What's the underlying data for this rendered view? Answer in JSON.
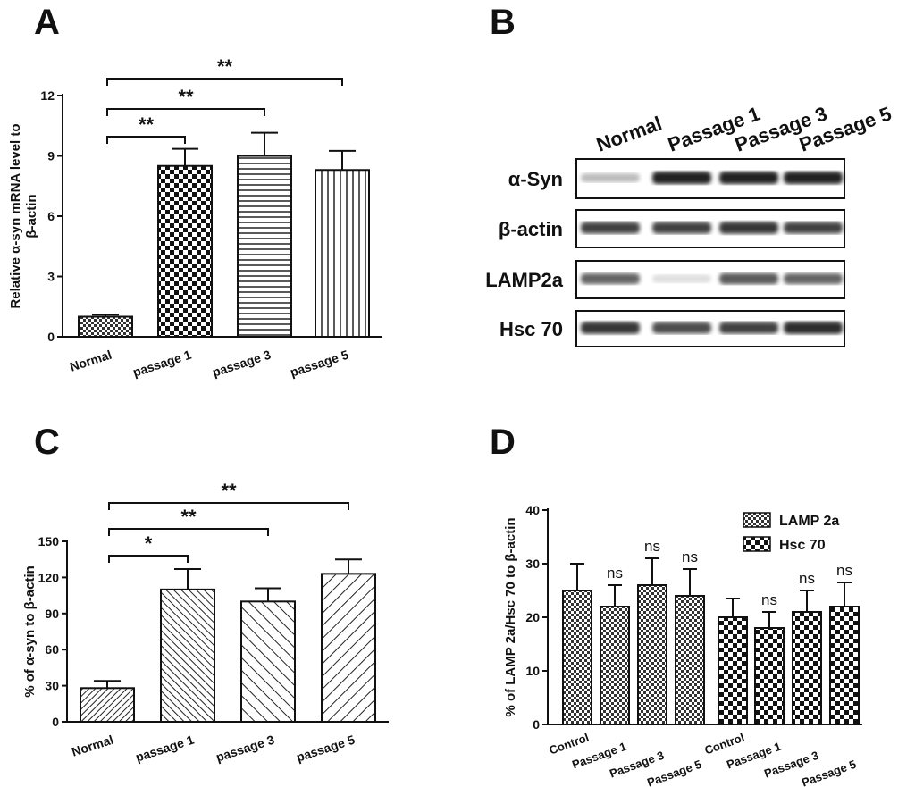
{
  "chart_data": [
    {
      "type": "bar",
      "panel": "A",
      "ylabel": [
        "Relative α-syn mRNA level to",
        "β-actin"
      ],
      "categories": [
        "Normal",
        "passage 1",
        "passage 3",
        "passage 5"
      ],
      "values": [
        1,
        8.5,
        9,
        8.3
      ],
      "errors": [
        0.1,
        0.85,
        1.15,
        0.95
      ],
      "patterns": [
        "checker-fine",
        "checker",
        "hlines",
        "vlines"
      ],
      "ylim": [
        0,
        12
      ],
      "yticks": [
        0,
        3,
        6,
        9,
        12
      ],
      "annotations": [
        {
          "text": "**",
          "from": 0,
          "to": 3
        },
        {
          "text": "**",
          "from": 0,
          "to": 2
        },
        {
          "text": "**",
          "from": 0,
          "to": 1
        }
      ]
    },
    {
      "type": "bar",
      "panel": "C",
      "ylabel": [
        "% of α-syn  to  β-actin"
      ],
      "categories": [
        "Normal",
        "passage 1",
        "passage 3",
        "passage 5"
      ],
      "values": [
        28,
        110,
        100,
        123
      ],
      "errors": [
        6,
        17,
        11,
        12
      ],
      "patterns": [
        "diag-fine-r",
        "diag-fine-l",
        "diag-l",
        "diag-r"
      ],
      "ylim": [
        0,
        150
      ],
      "yticks": [
        0,
        30,
        60,
        90,
        120,
        150
      ],
      "annotations": [
        {
          "text": "**",
          "from": 0,
          "to": 3
        },
        {
          "text": "**",
          "from": 0,
          "to": 2
        },
        {
          "text": "*",
          "from": 0,
          "to": 1
        }
      ]
    },
    {
      "type": "grouped-bar",
      "panel": "D",
      "ylabel": [
        "% of LAMP 2a/Hsc 70 to  β-actin"
      ],
      "categories": [
        "Control",
        "Passage 1",
        "Passage 3",
        "Passage 5"
      ],
      "series": [
        {
          "name": "LAMP 2a",
          "pattern": "checker-fine",
          "values": [
            25,
            22,
            26,
            24
          ],
          "errors": [
            5,
            4,
            5,
            5
          ],
          "labels": [
            null,
            "ns",
            "ns",
            "ns"
          ]
        },
        {
          "name": "Hsc 70",
          "pattern": "checker",
          "values": [
            20,
            18,
            21,
            22
          ],
          "errors": [
            3.5,
            3,
            4,
            4.5
          ],
          "labels": [
            null,
            "ns",
            "ns",
            "ns"
          ]
        }
      ],
      "ylim": [
        0,
        40
      ],
      "yticks": [
        0,
        10,
        20,
        30,
        40
      ],
      "legend": "top-right"
    }
  ],
  "blot": {
    "panel": "B",
    "columns": [
      "Normal",
      "Passage 1",
      "Passage 3",
      "Passage 5"
    ],
    "rows": [
      "α-Syn",
      "β-actin",
      "LAMP2a",
      "Hsc 70"
    ]
  }
}
